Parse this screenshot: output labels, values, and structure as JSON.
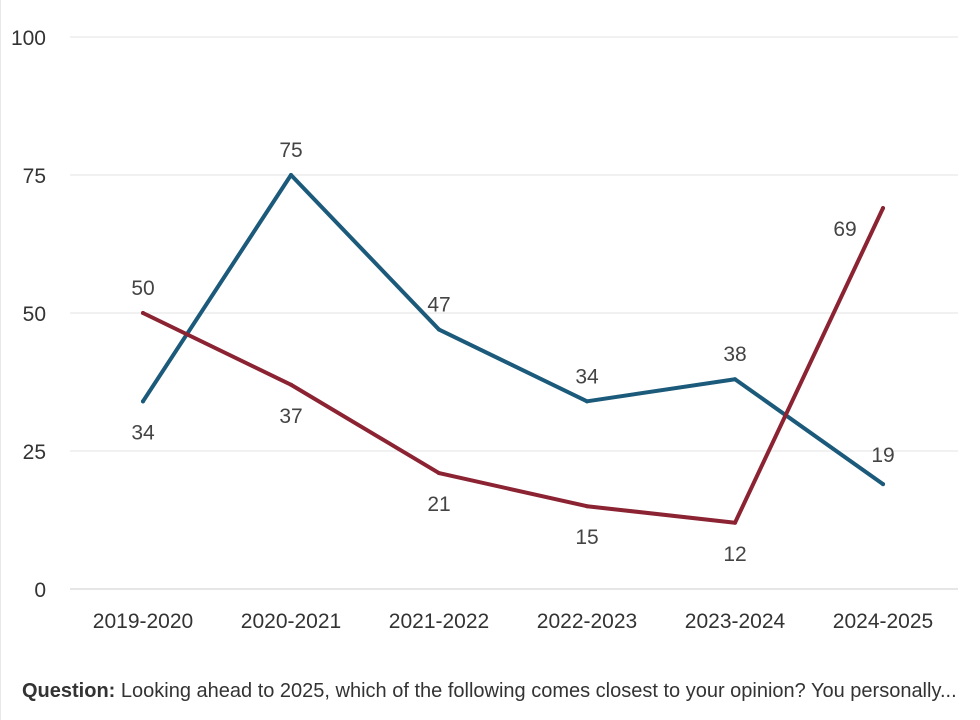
{
  "chart_data": {
    "type": "line",
    "categories": [
      "2019-2020",
      "2020-2021",
      "2021-2022",
      "2022-2023",
      "2023-2024",
      "2024-2025"
    ],
    "series": [
      {
        "values": [
          34,
          75,
          47,
          34,
          38,
          19
        ],
        "color": "#1b5a7a"
      },
      {
        "values": [
          50,
          37,
          21,
          15,
          12,
          69
        ],
        "color": "#8b2332"
      }
    ],
    "yticks": [
      0,
      25,
      50,
      75,
      100
    ],
    "ylim": [
      0,
      100
    ],
    "grid": true,
    "title": "",
    "xlabel": "",
    "ylabel": ""
  },
  "note": {
    "label": "Question:",
    "text": " Looking ahead to 2025, which of the following comes closest to your opinion? You personally..."
  }
}
